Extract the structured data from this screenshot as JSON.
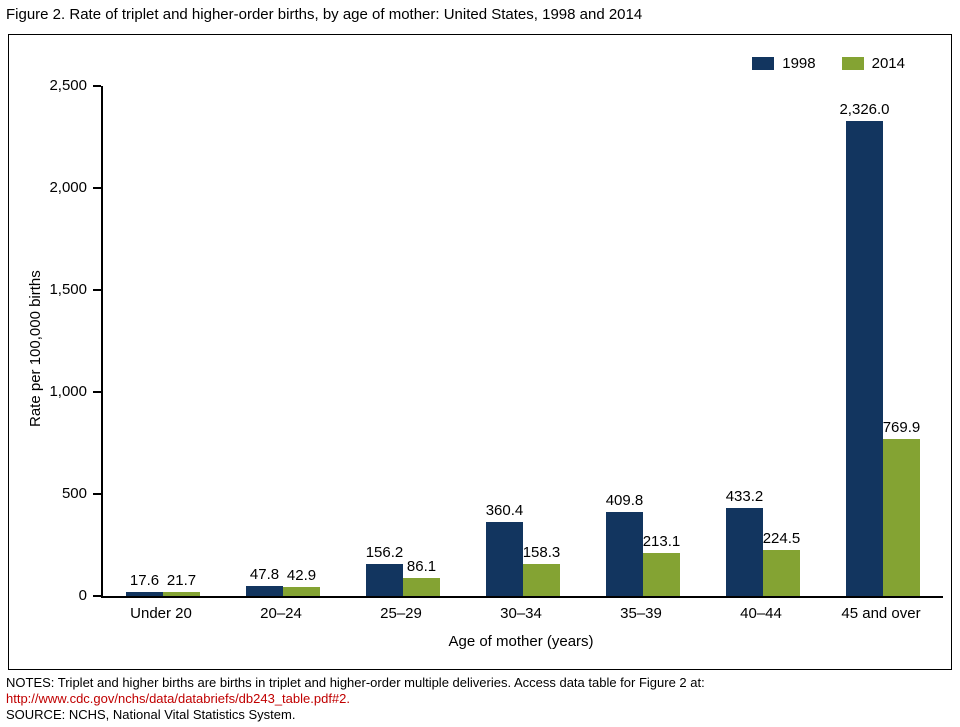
{
  "figure_title": "Figure 2. Rate of triplet and higher-order births, by age of mother: United States, 1998 and 2014",
  "chart_data": {
    "type": "bar",
    "title": "Rate of triplet and higher-order births, by age of mother: United States, 1998 and 2014",
    "categories": [
      "Under 20",
      "20–24",
      "25–29",
      "30–34",
      "35–39",
      "40–44",
      "45 and over"
    ],
    "series": [
      {
        "name": "1998",
        "color": "#12355f",
        "values": [
          17.6,
          47.8,
          156.2,
          360.4,
          409.8,
          433.2,
          2326.0
        ],
        "labels": [
          "17.6",
          "47.8",
          "156.2",
          "360.4",
          "409.8",
          "433.2",
          "2,326.0"
        ]
      },
      {
        "name": "2014",
        "color": "#84a333",
        "values": [
          21.7,
          42.9,
          86.1,
          158.3,
          213.1,
          224.5,
          769.9
        ],
        "labels": [
          "21.7",
          "42.9",
          "86.1",
          "158.3",
          "213.1",
          "224.5",
          "769.9"
        ]
      }
    ],
    "xlabel": "Age of mother (years)",
    "ylabel": "Rate per 100,000 births",
    "ylim": [
      0,
      2500
    ],
    "yticks": [
      0,
      500,
      1000,
      1500,
      2000,
      2500
    ],
    "ytick_labels": [
      "0",
      "500",
      "1,000",
      "1,500",
      "2,000",
      "2,500"
    ],
    "grid": false,
    "legend_position": "top-right"
  },
  "notes": {
    "line1": "NOTES: Triplet and higher births are births in triplet and higher-order multiple deliveries. Access data table for Figure 2 at:",
    "link": "http://www.cdc.gov/nchs/data/databriefs/db243_table.pdf#2.",
    "source": "SOURCE: NCHS, National Vital Statistics System."
  }
}
